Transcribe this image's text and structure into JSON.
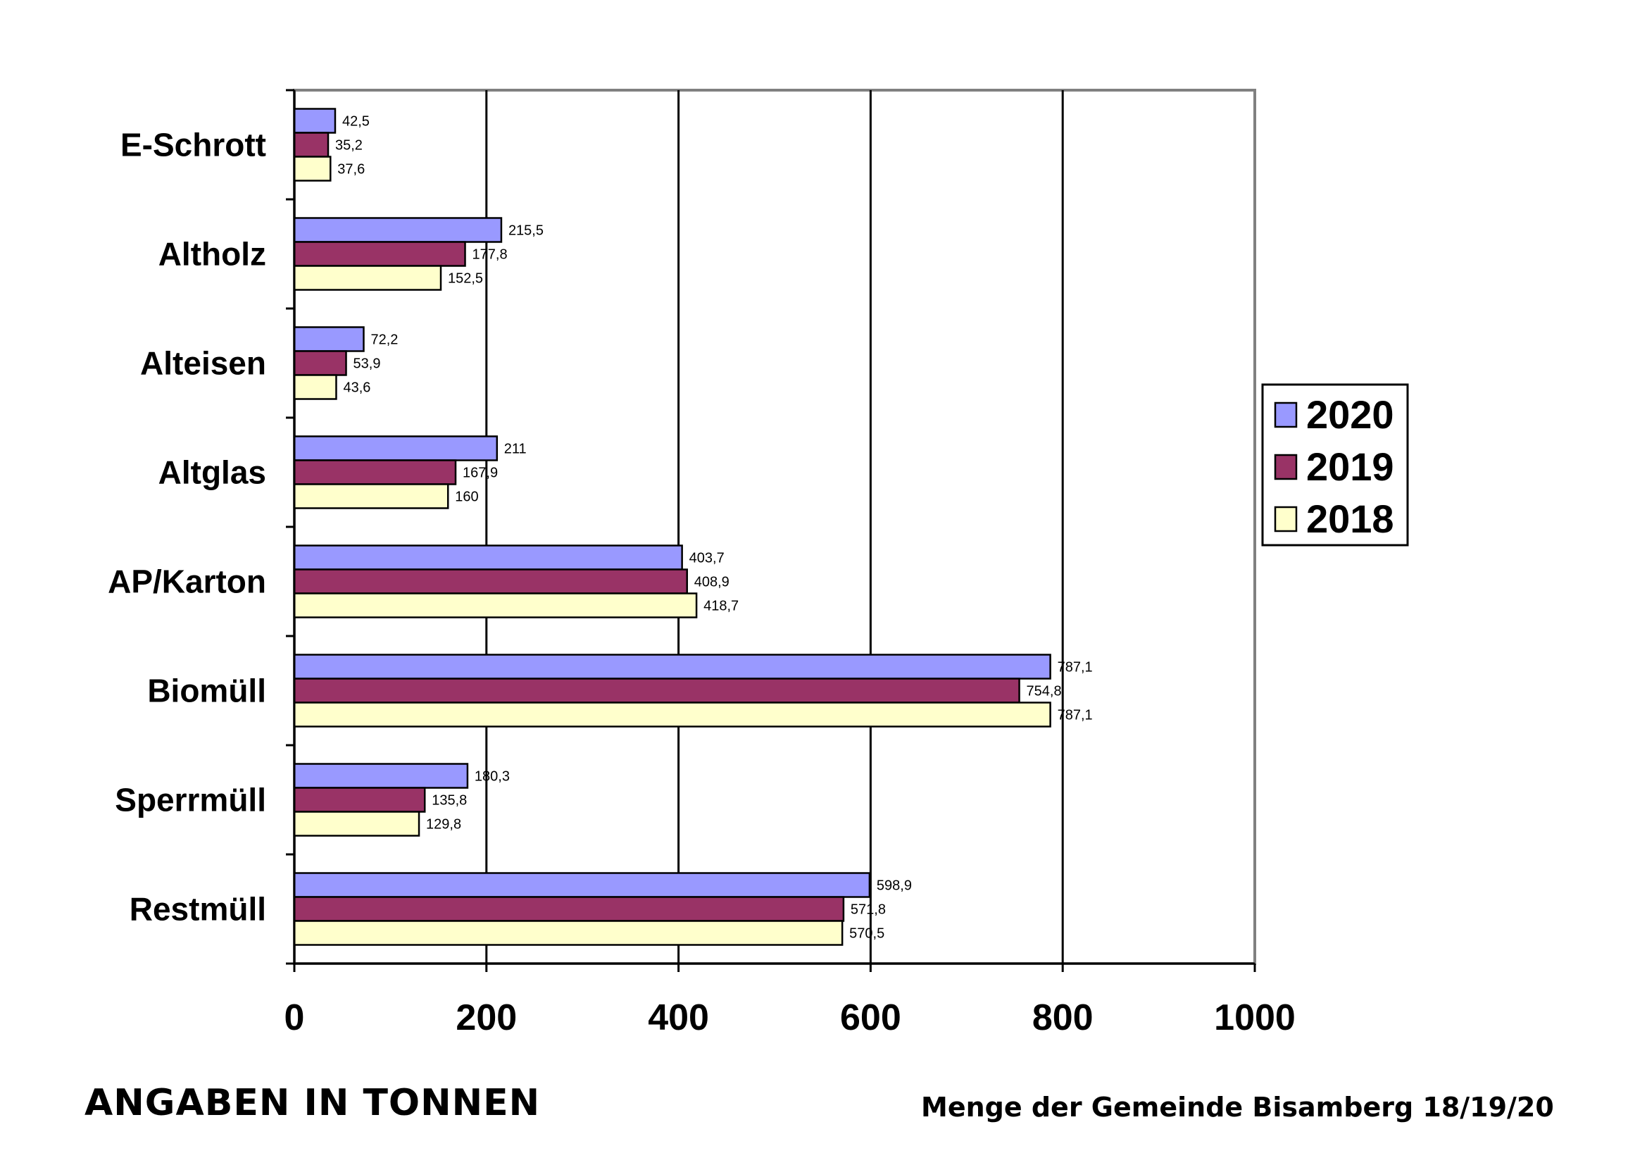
{
  "chart_data": {
    "type": "bar",
    "orientation": "horizontal",
    "categories": [
      "E-Schrott",
      "Altholz",
      "Alteisen",
      "Altglas",
      "AP/Karton",
      "Biomüll",
      "Sperrmüll",
      "Restmüll"
    ],
    "series": [
      {
        "name": "2020",
        "color": "#9999ff",
        "values": [
          42.5,
          215.5,
          72.2,
          211,
          403.7,
          787.1,
          180.3,
          598.9
        ],
        "labels": [
          "42,5",
          "215,5",
          "72,2",
          "211",
          "403,7",
          "787,1",
          "180,3",
          "598,9"
        ]
      },
      {
        "name": "2019",
        "color": "#993366",
        "values": [
          35.2,
          177.8,
          53.9,
          167.9,
          408.9,
          754.8,
          135.8,
          571.8
        ],
        "labels": [
          "35,2",
          "177,8",
          "53,9",
          "167,9",
          "408,9",
          "754,8",
          "135,8",
          "571,8"
        ]
      },
      {
        "name": "2018",
        "color": "#ffffcc",
        "values": [
          37.6,
          152.5,
          43.6,
          160,
          418.7,
          787.1,
          129.8,
          570.5
        ],
        "labels": [
          "37,6",
          "152,5",
          "43,6",
          "160",
          "418,7",
          "787,1",
          "129,8",
          "570,5"
        ]
      }
    ],
    "xlim": [
      0,
      1000
    ],
    "xticks": [
      "0",
      "200",
      "400",
      "600",
      "800",
      "1000"
    ],
    "grid": true,
    "legend_position": "right"
  },
  "footer": {
    "left": "ANGABEN IN TONNEN",
    "right": "Menge der Gemeinde Bisamberg 18/19/20"
  }
}
